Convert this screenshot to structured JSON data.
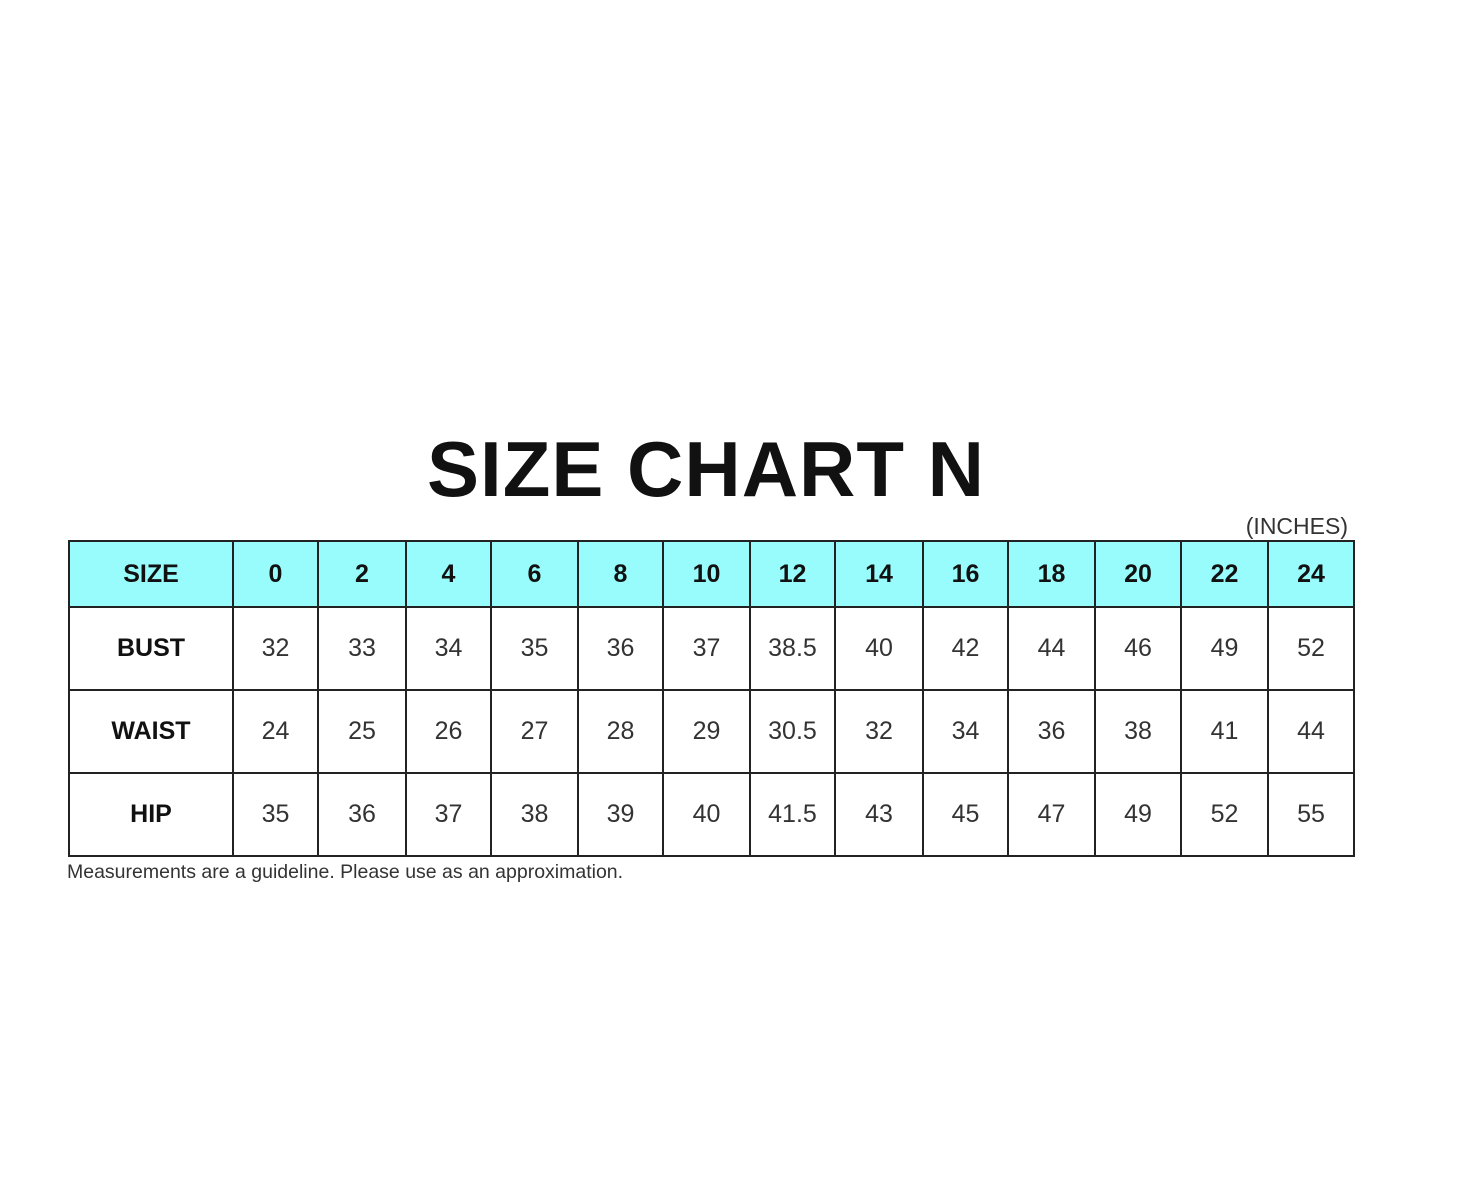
{
  "title": "SIZE CHART N",
  "unit": "(INCHES)",
  "table": {
    "header_label": "SIZE",
    "sizes": [
      "0",
      "2",
      "4",
      "6",
      "8",
      "10",
      "12",
      "14",
      "16",
      "18",
      "20",
      "22",
      "24"
    ],
    "rows": [
      {
        "label": "BUST",
        "values": [
          "32",
          "33",
          "34",
          "35",
          "36",
          "37",
          "38.5",
          "40",
          "42",
          "44",
          "46",
          "49",
          "52"
        ]
      },
      {
        "label": "WAIST",
        "values": [
          "24",
          "25",
          "26",
          "27",
          "28",
          "29",
          "30.5",
          "32",
          "34",
          "36",
          "38",
          "41",
          "44"
        ]
      },
      {
        "label": "HIP",
        "values": [
          "35",
          "36",
          "37",
          "38",
          "39",
          "40",
          "41.5",
          "43",
          "45",
          "47",
          "49",
          "52",
          "55"
        ]
      }
    ],
    "header_color": "#98fcfc"
  },
  "note": "Measurements are a guideline. Please use as an approximation."
}
